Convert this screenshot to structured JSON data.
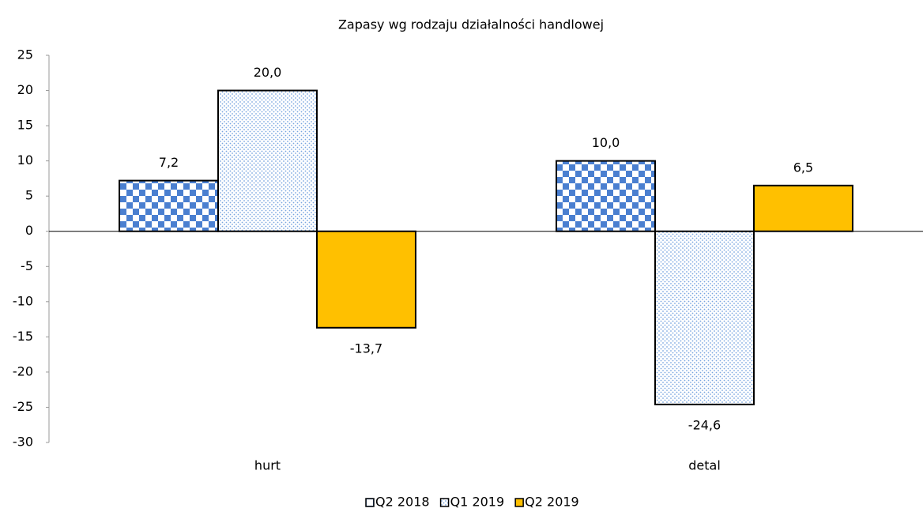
{
  "chart_data": {
    "type": "bar",
    "title": "Zapasy wg rodzaju działalności handlowej",
    "categories": [
      "hurt",
      "detal"
    ],
    "series": [
      {
        "name": "Q2 2018",
        "color": "#4a7fd0",
        "pattern": "checker",
        "values": [
          7.2,
          10.0
        ],
        "value_labels": [
          "7,2",
          "10,0"
        ]
      },
      {
        "name": "Q1 2019",
        "color": "#7aa6e0",
        "pattern": "dots",
        "values": [
          20.0,
          -24.6
        ],
        "value_labels": [
          "20,0",
          "-24,6"
        ]
      },
      {
        "name": "Q2 2019",
        "color": "#ffc000",
        "pattern": "solid",
        "values": [
          -13.7,
          6.5
        ],
        "value_labels": [
          "-13,7",
          "6,5"
        ]
      }
    ],
    "ylim": [
      -30,
      25
    ],
    "yticks": [
      25,
      20,
      15,
      10,
      5,
      0,
      -5,
      -10,
      -15,
      -20,
      -25,
      -30
    ],
    "legend": "bottom"
  }
}
